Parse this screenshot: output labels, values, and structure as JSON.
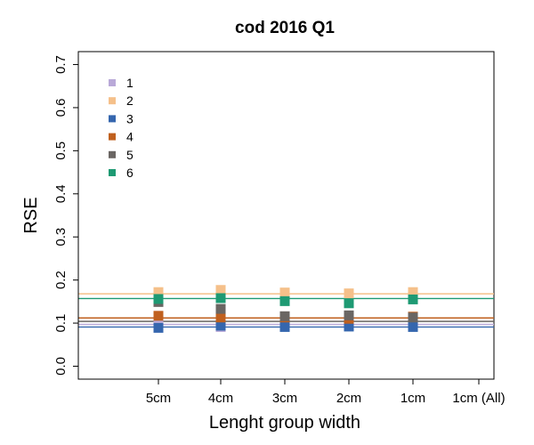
{
  "chart_data": {
    "type": "scatter",
    "title": "cod 2016 Q1",
    "xlabel": "Lenght group width",
    "ylabel": "RSE",
    "categories": [
      "5cm",
      "4cm",
      "3cm",
      "2cm",
      "1cm",
      "1cm (All)"
    ],
    "yticks": [
      "0.0",
      "0.1",
      "0.2",
      "0.3",
      "0.4",
      "0.5",
      "0.6",
      "0.7"
    ],
    "ylim": [
      -0.03,
      0.73
    ],
    "grid": false,
    "legend_position": "top-left",
    "series": [
      {
        "name": "1",
        "color": "#B9A9D8",
        "values": [
          0.1,
          0.091,
          null,
          null,
          null,
          null
        ],
        "reference": 0.097
      },
      {
        "name": "2",
        "color": "#F5C08A",
        "values": [
          0.172,
          0.177,
          0.171,
          0.169,
          0.172,
          null
        ],
        "reference": 0.168
      },
      {
        "name": "3",
        "color": "#3566AE",
        "values": [
          0.089,
          0.094,
          0.091,
          0.092,
          0.091,
          null
        ],
        "reference": 0.091
      },
      {
        "name": "4",
        "color": "#C0601E",
        "values": [
          0.117,
          0.113,
          0.113,
          0.11,
          0.115,
          null
        ],
        "reference": 0.112
      },
      {
        "name": "5",
        "color": "#6A6663",
        "values": [
          0.149,
          0.133,
          0.116,
          0.118,
          0.113,
          null
        ],
        "reference": 0.104
      },
      {
        "name": "6",
        "color": "#1E9A73",
        "values": [
          0.156,
          0.158,
          0.151,
          0.146,
          0.155,
          null
        ],
        "reference": 0.157
      }
    ]
  }
}
